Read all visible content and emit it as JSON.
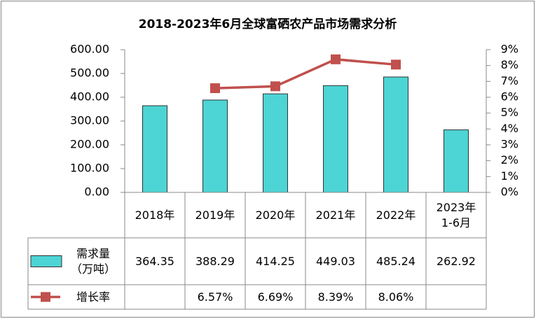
{
  "chart_data": {
    "type": "bar-line-table",
    "title": "2018-2023年6月全球富硒农产品市场需求分析",
    "categories": [
      "2018年",
      "2019年",
      "2020年",
      "2021年",
      "2022年",
      "2023年\n1-6月"
    ],
    "series": [
      {
        "name": "需求量\n（万吨）",
        "type": "bar",
        "color": "#4dd4d4",
        "values": [
          364.35,
          388.29,
          414.25,
          449.03,
          485.24,
          262.92
        ]
      },
      {
        "name": "增长率",
        "type": "line",
        "axis": "y2",
        "color": "#c0504d",
        "values": [
          null,
          6.57,
          6.69,
          8.39,
          8.06,
          null
        ],
        "value_labels": [
          null,
          "6.57%",
          "6.69%",
          "8.39%",
          "8.06%",
          null
        ]
      }
    ],
    "ylim": [
      0,
      600
    ],
    "yticks": [
      {
        "value": 0,
        "label": "0.00"
      },
      {
        "value": 100,
        "label": "100.00"
      },
      {
        "value": 200,
        "label": "200.00"
      },
      {
        "value": 300,
        "label": "300.00"
      },
      {
        "value": 400,
        "label": "400.00"
      },
      {
        "value": 500,
        "label": "500.00"
      },
      {
        "value": 600,
        "label": "600.00"
      }
    ],
    "y2lim": [
      0,
      9
    ],
    "y2ticks": [
      {
        "value": 0,
        "label": "0%"
      },
      {
        "value": 1,
        "label": "1%"
      },
      {
        "value": 2,
        "label": "2%"
      },
      {
        "value": 3,
        "label": "3%"
      },
      {
        "value": 4,
        "label": "4%"
      },
      {
        "value": 5,
        "label": "5%"
      },
      {
        "value": 6,
        "label": "6%"
      },
      {
        "value": 7,
        "label": "7%"
      },
      {
        "value": 8,
        "label": "8%"
      },
      {
        "value": 9,
        "label": "9%"
      }
    ]
  }
}
